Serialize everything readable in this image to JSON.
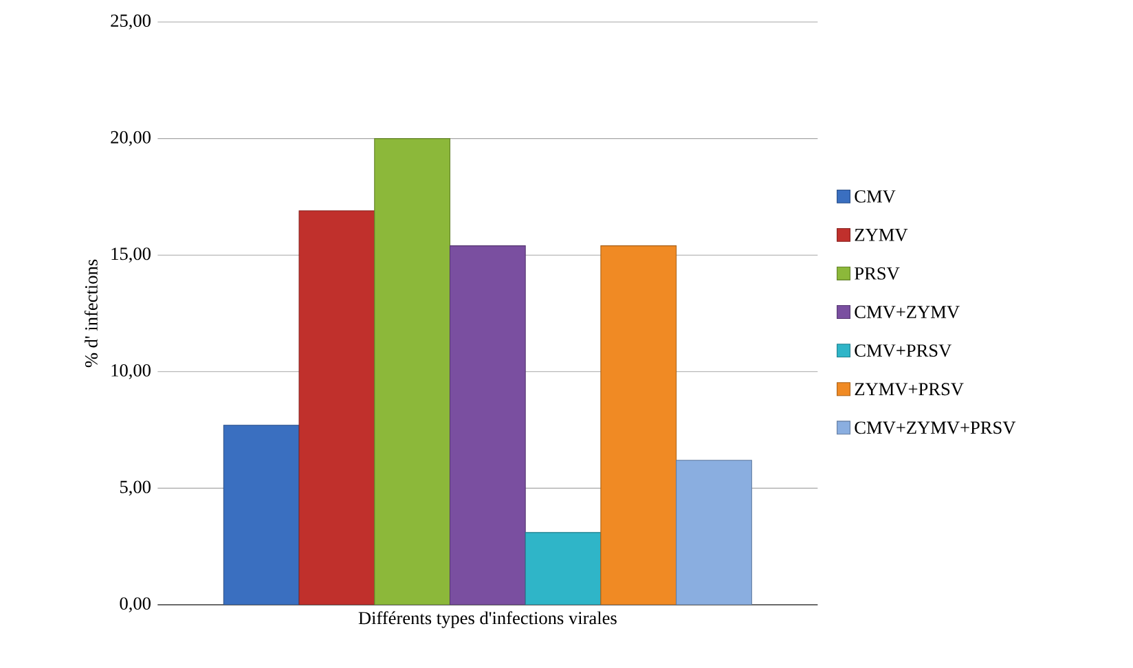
{
  "chart_data": {
    "type": "bar",
    "xlabel": "Différents types d'infections virales",
    "ylabel": "% d' infections",
    "categories": [
      null
    ],
    "series": [
      {
        "name": "CMV",
        "color": "#3a6fc0",
        "values": [
          7.7
        ]
      },
      {
        "name": "ZYMV",
        "color": "#c0302c",
        "values": [
          16.9
        ]
      },
      {
        "name": "PRSV",
        "color": "#8cb83a",
        "values": [
          20.0
        ]
      },
      {
        "name": "CMV+ZYMV",
        "color": "#7a4fa0",
        "values": [
          15.4
        ]
      },
      {
        "name": "CMV+PRSV",
        "color": "#2fb5c8",
        "values": [
          3.1
        ]
      },
      {
        "name": "ZYMV+PRSV",
        "color": "#f08a24",
        "values": [
          15.4
        ]
      },
      {
        "name": "CMV+ZYMV+PRSV",
        "color": "#8aaee0",
        "values": [
          6.2
        ]
      }
    ],
    "ylim": [
      0,
      25
    ],
    "yticks": [
      {
        "value": 0,
        "label": "0,00"
      },
      {
        "value": 5,
        "label": "5,00"
      },
      {
        "value": 10,
        "label": "10,00"
      },
      {
        "value": 15,
        "label": "15,00"
      },
      {
        "value": 20,
        "label": "20,00"
      },
      {
        "value": 25,
        "label": "25,00"
      }
    ],
    "grid": "y",
    "legend": "right"
  }
}
